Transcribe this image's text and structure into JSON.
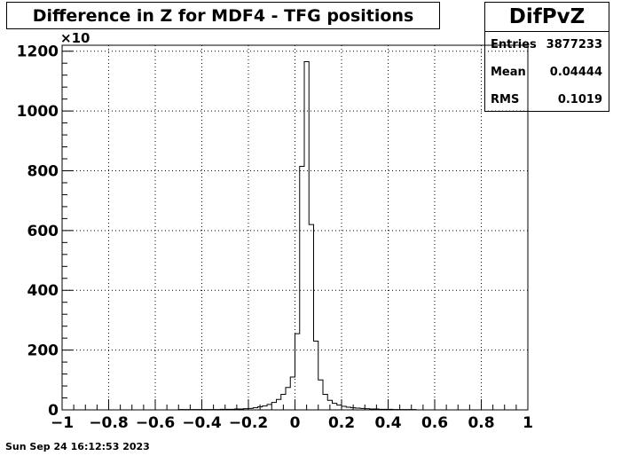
{
  "title": "Difference in Z for MDF4 - TFG positions",
  "stats": {
    "name": "DifPvZ",
    "rows": [
      {
        "label": "Entries",
        "value": "3877233"
      },
      {
        "label": "Mean",
        "value": "0.04444"
      },
      {
        "label": "RMS",
        "value": "0.1019"
      }
    ]
  },
  "footer_date": "Sun Sep 24 16:12:53 2023",
  "chart_data": {
    "type": "histogram",
    "title": "Difference in Z for MDF4 - TFG positions",
    "xlabel": "",
    "ylabel": "",
    "xlim": [
      -1,
      1
    ],
    "ylim": [
      0,
      1220
    ],
    "y_multiplier_label": "×10",
    "grid": true,
    "bin_width": 0.02,
    "x_ticks": [
      "−1",
      "−0.8",
      "−0.6",
      "−0.4",
      "−0.2",
      "0",
      "0.2",
      "0.4",
      "0.6",
      "0.8",
      "1"
    ],
    "x_tick_values": [
      -1,
      -0.8,
      -0.6,
      -0.4,
      -0.2,
      0,
      0.2,
      0.4,
      0.6,
      0.8,
      1
    ],
    "y_ticks": [
      "0",
      "200",
      "400",
      "600",
      "800",
      "1000",
      "1200"
    ],
    "y_tick_values": [
      0,
      200,
      400,
      600,
      800,
      1000,
      1200
    ],
    "bins": [
      {
        "x0": -0.5,
        "value": 1
      },
      {
        "x0": -0.48,
        "value": 1
      },
      {
        "x0": -0.46,
        "value": 1
      },
      {
        "x0": -0.44,
        "value": 1
      },
      {
        "x0": -0.42,
        "value": 1
      },
      {
        "x0": -0.4,
        "value": 1
      },
      {
        "x0": -0.38,
        "value": 1
      },
      {
        "x0": -0.36,
        "value": 1
      },
      {
        "x0": -0.34,
        "value": 1
      },
      {
        "x0": -0.32,
        "value": 2
      },
      {
        "x0": -0.3,
        "value": 2
      },
      {
        "x0": -0.28,
        "value": 2
      },
      {
        "x0": -0.26,
        "value": 3
      },
      {
        "x0": -0.24,
        "value": 3
      },
      {
        "x0": -0.22,
        "value": 4
      },
      {
        "x0": -0.2,
        "value": 5
      },
      {
        "x0": -0.18,
        "value": 7
      },
      {
        "x0": -0.16,
        "value": 10
      },
      {
        "x0": -0.14,
        "value": 13
      },
      {
        "x0": -0.12,
        "value": 18
      },
      {
        "x0": -0.1,
        "value": 25
      },
      {
        "x0": -0.08,
        "value": 35
      },
      {
        "x0": -0.06,
        "value": 52
      },
      {
        "x0": -0.04,
        "value": 75
      },
      {
        "x0": -0.02,
        "value": 110
      },
      {
        "x0": 0.0,
        "value": 255
      },
      {
        "x0": 0.02,
        "value": 815
      },
      {
        "x0": 0.04,
        "value": 1165
      },
      {
        "x0": 0.06,
        "value": 620
      },
      {
        "x0": 0.08,
        "value": 230
      },
      {
        "x0": 0.1,
        "value": 100
      },
      {
        "x0": 0.12,
        "value": 52
      },
      {
        "x0": 0.14,
        "value": 32
      },
      {
        "x0": 0.16,
        "value": 22
      },
      {
        "x0": 0.18,
        "value": 16
      },
      {
        "x0": 0.2,
        "value": 12
      },
      {
        "x0": 0.22,
        "value": 9
      },
      {
        "x0": 0.24,
        "value": 7
      },
      {
        "x0": 0.26,
        "value": 6
      },
      {
        "x0": 0.28,
        "value": 5
      },
      {
        "x0": 0.3,
        "value": 4
      },
      {
        "x0": 0.32,
        "value": 3
      },
      {
        "x0": 0.34,
        "value": 3
      },
      {
        "x0": 0.36,
        "value": 2
      },
      {
        "x0": 0.38,
        "value": 2
      },
      {
        "x0": 0.4,
        "value": 2
      },
      {
        "x0": 0.42,
        "value": 1
      },
      {
        "x0": 0.44,
        "value": 1
      },
      {
        "x0": 0.46,
        "value": 1
      },
      {
        "x0": 0.48,
        "value": 1
      },
      {
        "x0": 0.5,
        "value": 1
      }
    ]
  }
}
